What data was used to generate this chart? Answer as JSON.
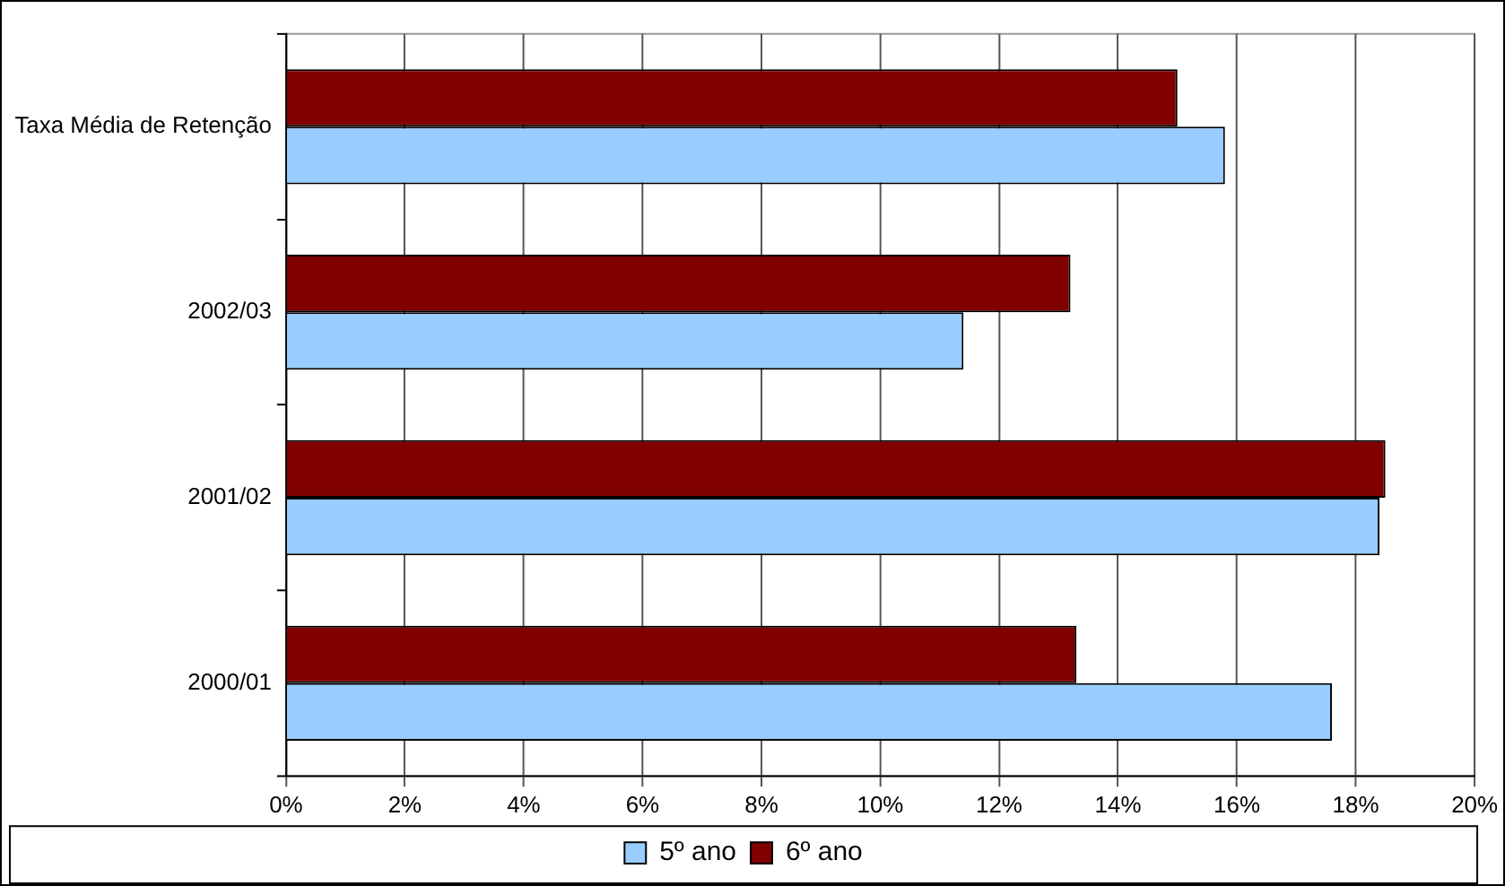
{
  "chart_data": {
    "type": "bar",
    "orientation": "horizontal",
    "categories": [
      "Taxa Média de Retenção",
      "2002/03",
      "2001/02",
      "2000/01"
    ],
    "series": [
      {
        "name": "5º ano",
        "color": "#99ccff",
        "values": [
          15.8,
          11.4,
          18.4,
          17.6
        ]
      },
      {
        "name": "6º ano",
        "color": "#800000",
        "values": [
          15.0,
          13.2,
          18.5,
          13.3
        ]
      }
    ],
    "xlim": [
      0,
      20
    ],
    "xticks": [
      {
        "value": 0,
        "label": "0%"
      },
      {
        "value": 2,
        "label": "2%"
      },
      {
        "value": 4,
        "label": "4%"
      },
      {
        "value": 6,
        "label": "6%"
      },
      {
        "value": 8,
        "label": "8%"
      },
      {
        "value": 10,
        "label": "10%"
      },
      {
        "value": 12,
        "label": "12%"
      },
      {
        "value": 14,
        "label": "14%"
      },
      {
        "value": 16,
        "label": "16%"
      },
      {
        "value": 18,
        "label": "18%"
      },
      {
        "value": 20,
        "label": "20%"
      }
    ],
    "grid": "x",
    "legend": "bottom"
  }
}
